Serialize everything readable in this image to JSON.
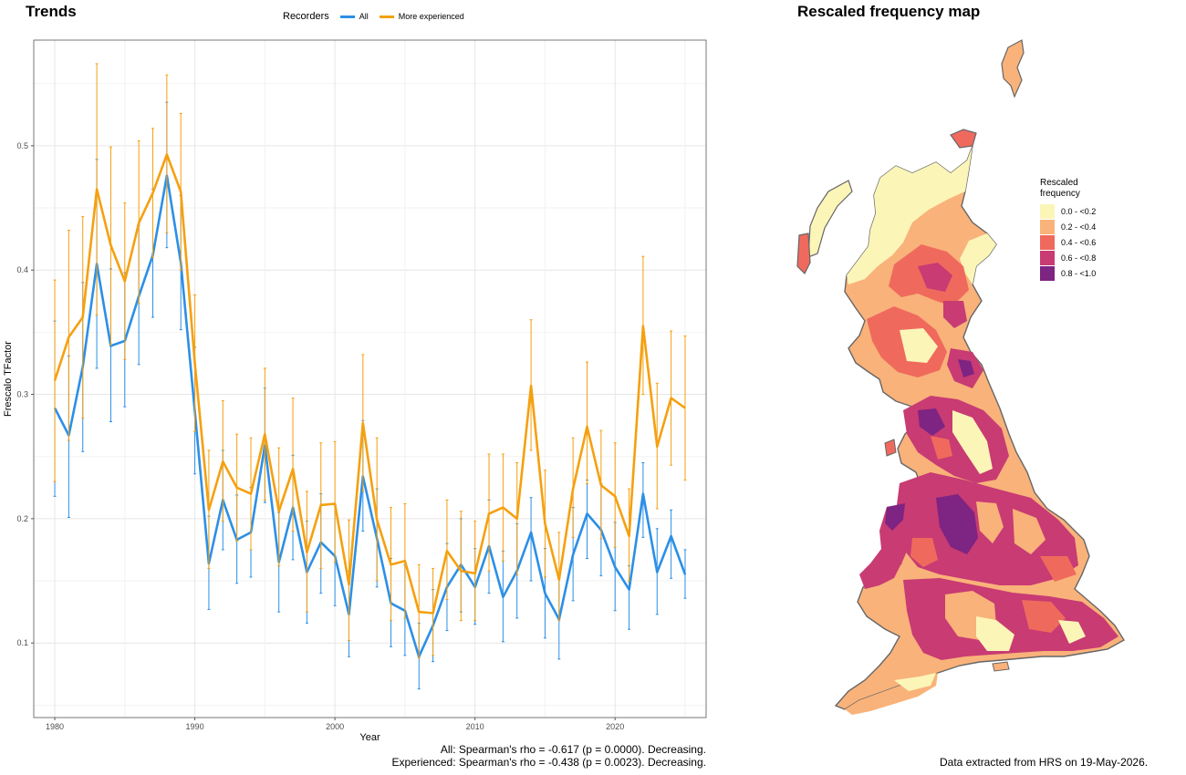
{
  "left_panel": {
    "title": "Trends"
  },
  "right_panel": {
    "title": "Rescaled frequency map"
  },
  "legend": {
    "title": "Recorders",
    "items": [
      {
        "label": "All",
        "color": "#2c8fe6"
      },
      {
        "label": "More experienced",
        "color": "#f5a00f"
      }
    ]
  },
  "stats": {
    "all": "All: Spearman's rho = -0.617 (p = 0.0000). Decreasing.",
    "experienced": "Experienced: Spearman's rho = -0.438 (p = 0.0023). Decreasing."
  },
  "footnote": "Data extracted from HRS on 19-May-2026.",
  "map_legend": {
    "title_line1": "Rescaled",
    "title_line2": "frequency",
    "classes": [
      {
        "label": "0.0 - <0.2",
        "color": "#fcf5b8"
      },
      {
        "label": "0.2 - <0.4",
        "color": "#f9b27a"
      },
      {
        "label": "0.4 - <0.6",
        "color": "#ef6a5d"
      },
      {
        "label": "0.6 - <0.8",
        "color": "#c83b73"
      },
      {
        "label": "0.8 - <1.0",
        "color": "#7e2482"
      }
    ]
  },
  "chart_data": {
    "type": "line",
    "xlabel": "Year",
    "ylabel": "Frescalo TFactor",
    "xlim": [
      1978.5,
      2026.5
    ],
    "ylim": [
      0.04,
      0.585
    ],
    "xticks": [
      1980,
      1990,
      2000,
      2010,
      2020
    ],
    "yticks": [
      0.1,
      0.2,
      0.3,
      0.4,
      0.5
    ],
    "grid": true,
    "legend_position": "top",
    "series": [
      {
        "name": "All",
        "color": "#2c8fe6",
        "x": [
          1980,
          1981,
          1982,
          1983,
          1984,
          1985,
          1986,
          1987,
          1988,
          1989,
          1990,
          1991,
          1992,
          1993,
          1994,
          1995,
          1996,
          1997,
          1998,
          1999,
          2000,
          2001,
          2002,
          2003,
          2004,
          2005,
          2006,
          2007,
          2008,
          2009,
          2010,
          2011,
          2012,
          2013,
          2014,
          2015,
          2016,
          2017,
          2018,
          2019,
          2020,
          2021,
          2022,
          2023,
          2024,
          2025
        ],
        "y": [
          0.289,
          0.267,
          0.322,
          0.405,
          0.339,
          0.343,
          0.379,
          0.412,
          0.476,
          0.406,
          0.286,
          0.164,
          0.215,
          0.183,
          0.189,
          0.259,
          0.165,
          0.209,
          0.157,
          0.181,
          0.17,
          0.123,
          0.234,
          0.184,
          0.132,
          0.126,
          0.089,
          0.114,
          0.145,
          0.163,
          0.145,
          0.178,
          0.137,
          0.158,
          0.189,
          0.14,
          0.119,
          0.171,
          0.204,
          0.191,
          0.161,
          0.143,
          0.22,
          0.157,
          0.186,
          0.155
        ],
        "lower": [
          0.218,
          0.201,
          0.254,
          0.321,
          0.278,
          0.29,
          0.324,
          0.362,
          0.418,
          0.352,
          0.236,
          0.127,
          0.175,
          0.148,
          0.153,
          0.213,
          0.125,
          0.167,
          0.116,
          0.14,
          0.13,
          0.089,
          0.19,
          0.145,
          0.097,
          0.09,
          0.063,
          0.085,
          0.11,
          0.125,
          0.115,
          0.14,
          0.101,
          0.12,
          0.15,
          0.104,
          0.087,
          0.134,
          0.168,
          0.154,
          0.126,
          0.111,
          0.185,
          0.123,
          0.152,
          0.136
        ],
        "upper": [
          0.359,
          0.331,
          0.39,
          0.489,
          0.401,
          0.398,
          0.436,
          0.465,
          0.535,
          0.46,
          0.338,
          0.202,
          0.255,
          0.219,
          0.225,
          0.305,
          0.205,
          0.251,
          0.198,
          0.22,
          0.211,
          0.158,
          0.279,
          0.224,
          0.168,
          0.163,
          0.116,
          0.143,
          0.18,
          0.2,
          0.176,
          0.215,
          0.174,
          0.196,
          0.217,
          0.176,
          0.152,
          0.209,
          0.231,
          0.228,
          0.197,
          0.162,
          0.245,
          0.192,
          0.207,
          0.175
        ]
      },
      {
        "name": "More experienced",
        "color": "#f5a00f",
        "x": [
          1980,
          1981,
          1982,
          1983,
          1984,
          1985,
          1986,
          1987,
          1988,
          1989,
          1990,
          1991,
          1992,
          1993,
          1994,
          1995,
          1996,
          1997,
          1998,
          1999,
          2000,
          2001,
          2002,
          2003,
          2004,
          2005,
          2006,
          2007,
          2008,
          2009,
          2010,
          2011,
          2012,
          2013,
          2014,
          2015,
          2016,
          2017,
          2018,
          2019,
          2020,
          2021,
          2022,
          2023,
          2024,
          2025
        ],
        "y": [
          0.311,
          0.346,
          0.362,
          0.465,
          0.42,
          0.391,
          0.438,
          0.462,
          0.493,
          0.463,
          0.325,
          0.207,
          0.246,
          0.225,
          0.22,
          0.268,
          0.206,
          0.24,
          0.173,
          0.211,
          0.212,
          0.147,
          0.277,
          0.199,
          0.163,
          0.166,
          0.125,
          0.124,
          0.174,
          0.158,
          0.156,
          0.204,
          0.209,
          0.2,
          0.307,
          0.196,
          0.151,
          0.224,
          0.274,
          0.227,
          0.218,
          0.186,
          0.355,
          0.258,
          0.297,
          0.289
        ],
        "lower": [
          0.23,
          0.263,
          0.281,
          0.364,
          0.34,
          0.328,
          0.373,
          0.41,
          0.43,
          0.4,
          0.27,
          0.16,
          0.198,
          0.182,
          0.175,
          0.215,
          0.162,
          0.19,
          0.125,
          0.16,
          0.165,
          0.102,
          0.222,
          0.15,
          0.118,
          0.12,
          0.088,
          0.09,
          0.135,
          0.118,
          0.118,
          0.158,
          0.166,
          0.155,
          0.255,
          0.153,
          0.118,
          0.185,
          0.228,
          0.184,
          0.177,
          0.15,
          0.3,
          0.208,
          0.243,
          0.231
        ],
        "upper": [
          0.392,
          0.432,
          0.443,
          0.566,
          0.499,
          0.454,
          0.504,
          0.514,
          0.557,
          0.526,
          0.38,
          0.255,
          0.295,
          0.268,
          0.265,
          0.321,
          0.257,
          0.297,
          0.222,
          0.261,
          0.262,
          0.199,
          0.332,
          0.265,
          0.209,
          0.212,
          0.163,
          0.16,
          0.215,
          0.206,
          0.198,
          0.252,
          0.252,
          0.245,
          0.36,
          0.239,
          0.189,
          0.265,
          0.326,
          0.271,
          0.261,
          0.224,
          0.411,
          0.309,
          0.351,
          0.347
        ]
      }
    ]
  }
}
